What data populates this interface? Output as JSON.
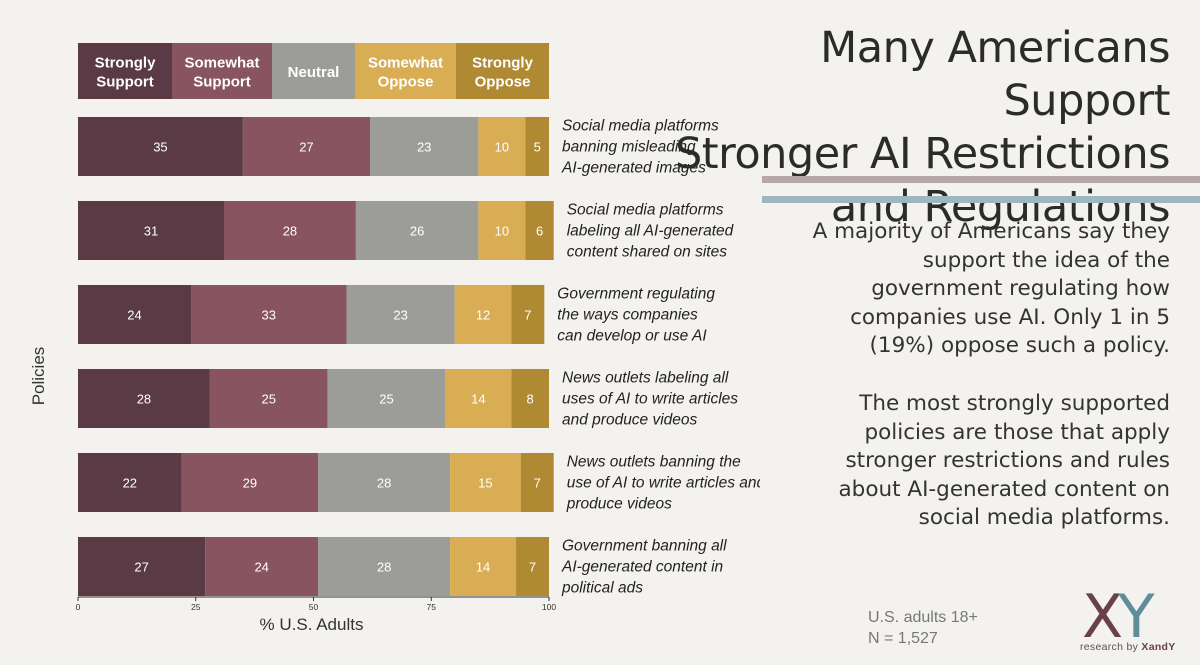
{
  "colors": {
    "strongly_support": "#5a3a44",
    "somewhat_support": "#87545f",
    "neutral": "#9c9d98",
    "somewhat_oppose": "#d8ad54",
    "strongly_oppose": "#b08a33",
    "background": "#f4f2ee",
    "rule_1": "#b7a8a8",
    "rule_2": "#9eb6bd",
    "logo_x": "#6a3f4e",
    "logo_y": "#5f8d99"
  },
  "title_lines": [
    "Many Americans Support",
    "Stronger AI Restrictions",
    "and Regulations"
  ],
  "summary": {
    "paragraph_1": "A majority of Americans say they support the idea of the government regulating how companies use AI.  Only 1 in 5 (19%) oppose such a policy.",
    "paragraph_2": "The most strongly supported policies are those that apply stronger restrictions and rules about AI-generated content on social media platforms."
  },
  "sample": {
    "population": "U.S. adults 18+",
    "n": "N = 1,527"
  },
  "logo": {
    "mark_x": "X",
    "mark_y": "Y",
    "tagline_prefix": "research by ",
    "tagline_brand": "XandY"
  },
  "chart_data": {
    "type": "bar",
    "orientation": "horizontal",
    "stacked": true,
    "xlabel": "% U.S. Adults",
    "ylabel": "Policies",
    "xlim": [
      0,
      100
    ],
    "xticks": [
      0,
      25,
      50,
      75,
      100
    ],
    "legend": {
      "placement": "top",
      "entries": [
        {
          "lines": [
            "Strongly",
            "Support"
          ],
          "color_key": "strongly_support"
        },
        {
          "lines": [
            "Somewhat",
            "Support"
          ],
          "color_key": "somewhat_support"
        },
        {
          "lines": [
            "Neutral"
          ],
          "color_key": "neutral"
        },
        {
          "lines": [
            "Somewhat",
            "Oppose"
          ],
          "color_key": "somewhat_oppose"
        },
        {
          "lines": [
            "Strongly",
            "Oppose"
          ],
          "color_key": "strongly_oppose"
        }
      ]
    },
    "series": [
      {
        "name": "Strongly Support",
        "color_key": "strongly_support"
      },
      {
        "name": "Somewhat Support",
        "color_key": "somewhat_support"
      },
      {
        "name": "Neutral",
        "color_key": "neutral"
      },
      {
        "name": "Somewhat Oppose",
        "color_key": "somewhat_oppose"
      },
      {
        "name": "Strongly Oppose",
        "color_key": "strongly_oppose"
      }
    ],
    "categories": [
      {
        "label_lines": [
          "Social media platforms",
          "banning misleading",
          "AI-generated images"
        ],
        "values": [
          35,
          27,
          23,
          10,
          5
        ]
      },
      {
        "label_lines": [
          "Social media platforms",
          "labeling all AI-generated",
          "content shared on sites"
        ],
        "values": [
          31,
          28,
          26,
          10,
          6
        ]
      },
      {
        "label_lines": [
          "Government regulating",
          "the ways companies",
          "can develop or use AI"
        ],
        "values": [
          24,
          33,
          23,
          12,
          7
        ]
      },
      {
        "label_lines": [
          "News outlets labeling all",
          "uses of AI to write articles",
          "and produce videos"
        ],
        "values": [
          28,
          25,
          25,
          14,
          8
        ]
      },
      {
        "label_lines": [
          "News outlets banning the",
          "use of AI to write articles and",
          "produce videos"
        ],
        "values": [
          22,
          29,
          28,
          15,
          7
        ]
      },
      {
        "label_lines": [
          "Government banning all",
          "AI-generated content in",
          "political ads"
        ],
        "values": [
          27,
          24,
          28,
          14,
          7
        ]
      }
    ]
  }
}
